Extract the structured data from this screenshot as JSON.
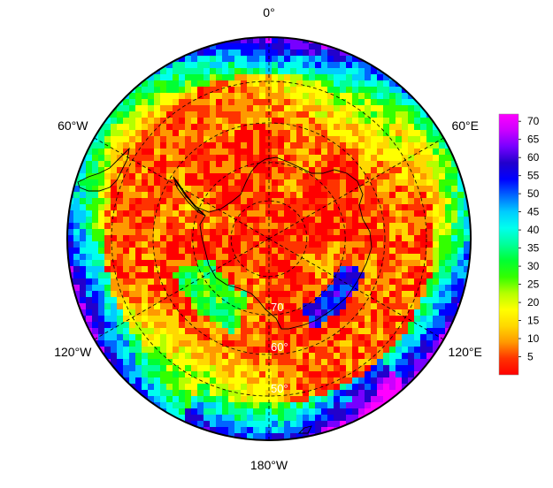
{
  "map": {
    "projection": "south-polar-stereographic",
    "longitude_labels": [
      {
        "text": "0°",
        "lon": 0
      },
      {
        "text": "60°E",
        "lon": 60
      },
      {
        "text": "120°E",
        "lon": 120
      },
      {
        "text": "180°W",
        "lon": 180
      },
      {
        "text": "120°W",
        "lon": -120
      },
      {
        "text": "60°W",
        "lon": -60
      }
    ],
    "latitude_labels": [
      {
        "text": "70",
        "lat": 70
      },
      {
        "text": "60°",
        "lat": 60
      },
      {
        "text": "50°",
        "lat": 50
      }
    ],
    "grid_latitudes": [
      80,
      70,
      60,
      50
    ],
    "grid_longitudes": [
      0,
      60,
      120,
      180,
      -120,
      -60
    ],
    "outer_latitude": 40
  },
  "colorbar": {
    "min": 0,
    "max": 72,
    "ticks": [
      5,
      10,
      15,
      20,
      25,
      30,
      35,
      40,
      45,
      50,
      55,
      60,
      65,
      70
    ],
    "colors": [
      "#ff0000",
      "#ff3300",
      "#ff9900",
      "#ffd800",
      "#ffff00",
      "#b4ff00",
      "#33ff00",
      "#00ff33",
      "#00ff99",
      "#00ffee",
      "#00ccff",
      "#0066ff",
      "#0000ff",
      "#2200cc",
      "#7700ff",
      "#cc00ff",
      "#ff00ff"
    ]
  }
}
